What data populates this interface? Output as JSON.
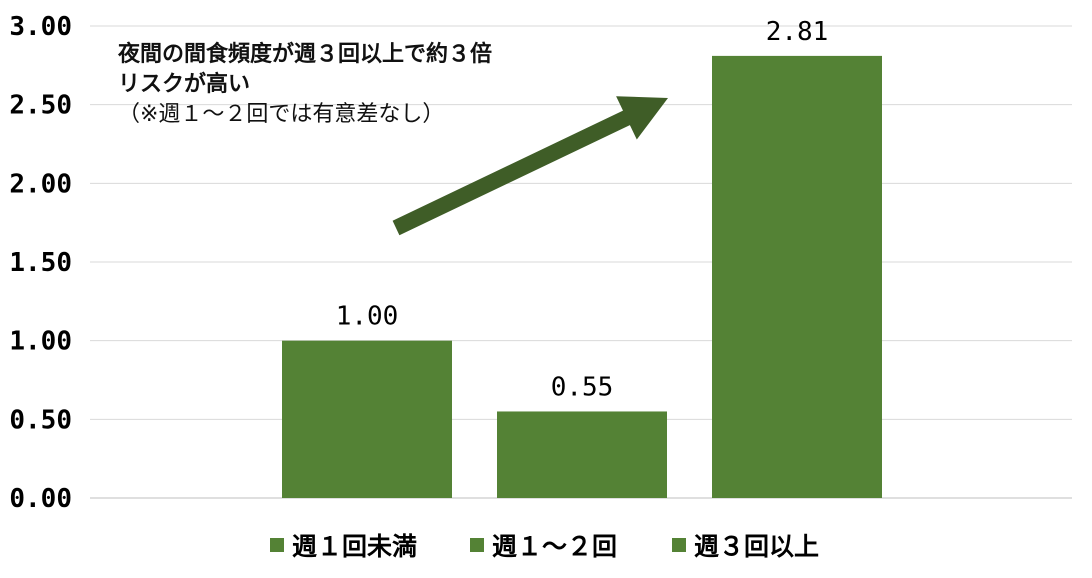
{
  "chart_data": {
    "type": "bar",
    "categories": [
      "週１回未満",
      "週１～２回",
      "週３回以上"
    ],
    "values": [
      1.0,
      0.55,
      2.81
    ],
    "value_labels": [
      "1.00",
      "0.55",
      "2.81"
    ],
    "ylim": [
      0,
      3
    ],
    "yticks": [
      "0.00",
      "0.50",
      "1.00",
      "1.50",
      "2.00",
      "2.50",
      "3.00"
    ],
    "grid": true,
    "legend_position": "bottom",
    "bar_color": "#548235",
    "arrow_color": "#3f5d27",
    "annotation": {
      "line1": "夜間の間食頻度が週３回以上で約３倍",
      "line2": "リスクが高い",
      "line3": "（※週１～２回では有意差なし）"
    }
  }
}
